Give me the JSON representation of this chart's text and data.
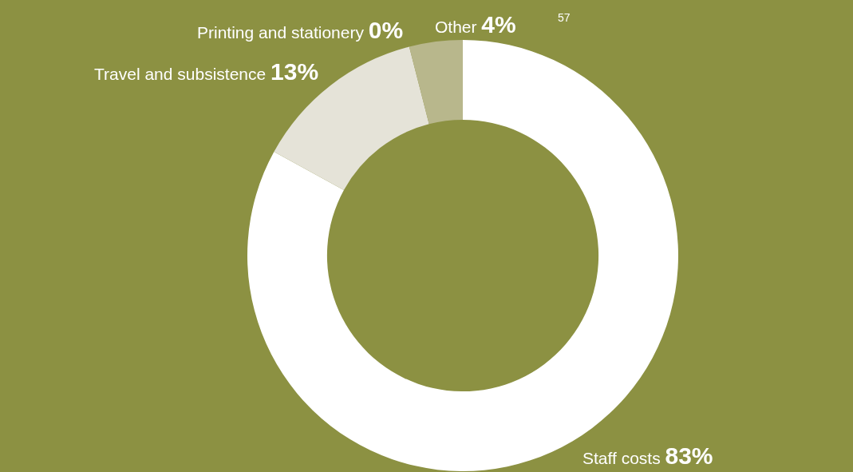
{
  "chart_data": {
    "type": "donut",
    "categories": [
      "Staff costs",
      "Travel and subsistence",
      "Printing and stationery",
      "Other"
    ],
    "values": [
      83,
      13,
      0,
      4
    ],
    "value_labels": [
      "83%",
      "13%",
      "0%",
      "4%"
    ],
    "colors": [
      "#ffffff",
      "#e5e3d8",
      "#c9c8a6",
      "#b8b78c"
    ],
    "annotations": [
      "57"
    ],
    "legend": false
  }
}
